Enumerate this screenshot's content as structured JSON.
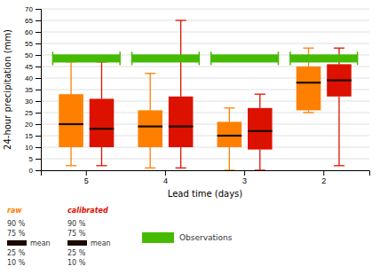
{
  "chart_data": {
    "type": "box",
    "categories": [
      "5",
      "4",
      "3",
      "2"
    ],
    "series": [
      {
        "name": "raw",
        "color": "#FF8000",
        "p10": [
          2,
          1,
          0,
          25
        ],
        "p25": [
          10,
          10,
          10,
          26
        ],
        "median": [
          20,
          19,
          15,
          38
        ],
        "p75": [
          33,
          26,
          21,
          45
        ],
        "p90": [
          47,
          42,
          27,
          53
        ]
      },
      {
        "name": "calibrated",
        "color": "#DD1100",
        "p10": [
          2,
          1,
          0,
          2
        ],
        "p25": [
          10,
          10,
          9,
          32
        ],
        "median": [
          18,
          19,
          17,
          39
        ],
        "p75": [
          31,
          32,
          27,
          46
        ],
        "p90": [
          47,
          65,
          33,
          53
        ]
      }
    ],
    "median_color": "#1A0A00",
    "observations": {
      "name": "Observations",
      "color": "#44BB00",
      "value": 48.5,
      "thickness": 3.5
    },
    "legend_rows": [
      "90 %",
      "75 %",
      "mean",
      "25 %",
      "10 %"
    ],
    "xlabel": "Lead time (days)",
    "ylabel": "24-hour precipitation (mm)",
    "ylim": [
      0,
      70
    ],
    "yticks": [
      0,
      5,
      10,
      15,
      20,
      25,
      30,
      35,
      40,
      45,
      50,
      55,
      60,
      65,
      70
    ],
    "grid": true
  }
}
